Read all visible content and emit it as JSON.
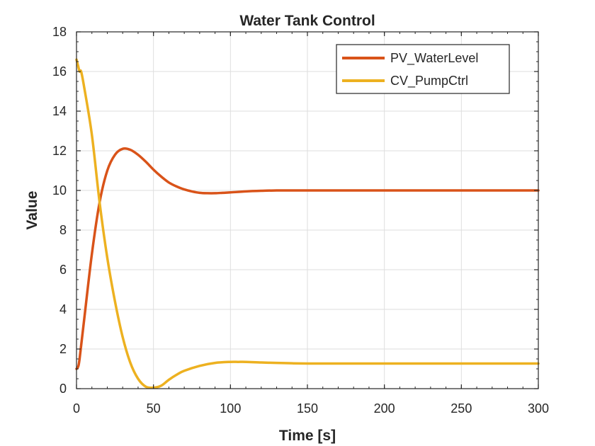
{
  "chart_data": {
    "type": "line",
    "title": "Water Tank Control",
    "xlabel": "Time [s]",
    "ylabel": "Value",
    "xlim": [
      0,
      300
    ],
    "ylim": [
      0,
      18
    ],
    "xticks": [
      0,
      50,
      100,
      150,
      200,
      250,
      300
    ],
    "yticks": [
      0,
      2,
      4,
      6,
      8,
      10,
      12,
      14,
      16,
      18
    ],
    "grid": true,
    "legend_position": "top-right",
    "series": [
      {
        "name": "PV_WaterLevel",
        "color": "#d95319",
        "x": [
          0,
          1,
          2,
          5,
          10,
          15,
          20,
          25,
          30,
          35,
          40,
          45,
          50,
          55,
          60,
          65,
          70,
          75,
          80,
          85,
          90,
          95,
          100,
          110,
          120,
          130,
          140,
          150,
          170,
          200,
          250,
          300
        ],
        "y": [
          1.0,
          1.1,
          1.5,
          3.5,
          6.8,
          9.4,
          11.0,
          11.8,
          12.1,
          12.05,
          11.8,
          11.45,
          11.05,
          10.7,
          10.4,
          10.2,
          10.05,
          9.95,
          9.88,
          9.86,
          9.86,
          9.88,
          9.9,
          9.95,
          9.98,
          10.0,
          10.0,
          10.0,
          10.0,
          10.0,
          10.0,
          10.0
        ]
      },
      {
        "name": "CV_PumpCtrl",
        "color": "#edb120",
        "x": [
          0,
          1,
          2,
          3,
          5,
          10,
          15,
          20,
          25,
          30,
          35,
          40,
          45,
          50,
          55,
          60,
          65,
          70,
          80,
          90,
          100,
          105,
          110,
          120,
          130,
          140,
          150,
          170,
          200,
          250,
          300
        ],
        "y": [
          16.6,
          16.3,
          16.0,
          16.0,
          15.2,
          12.8,
          9.4,
          6.6,
          4.4,
          2.6,
          1.3,
          0.5,
          0.1,
          0.05,
          0.15,
          0.45,
          0.7,
          0.9,
          1.15,
          1.3,
          1.35,
          1.35,
          1.35,
          1.32,
          1.3,
          1.28,
          1.27,
          1.27,
          1.27,
          1.27,
          1.27
        ]
      }
    ]
  }
}
